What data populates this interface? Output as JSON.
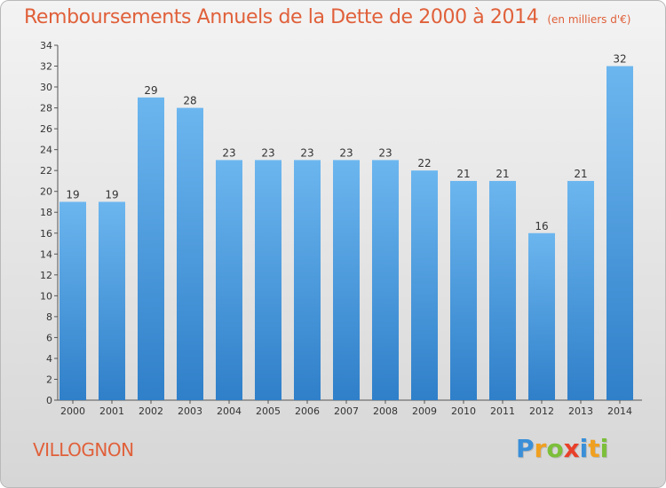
{
  "chart_data": {
    "type": "bar",
    "title": "Remboursements Annuels de la Dette de 2000 à 2014",
    "subtitle": "(en milliers d'€)",
    "categories": [
      "2000",
      "2001",
      "2002",
      "2003",
      "2004",
      "2005",
      "2006",
      "2007",
      "2008",
      "2009",
      "2010",
      "2011",
      "2012",
      "2013",
      "2014"
    ],
    "values": [
      19,
      19,
      29,
      28,
      23,
      23,
      23,
      23,
      23,
      22,
      21,
      21,
      16,
      21,
      32
    ],
    "ylim": [
      0,
      34
    ],
    "yticks": [
      0,
      2,
      4,
      6,
      8,
      10,
      12,
      14,
      16,
      18,
      20,
      22,
      24,
      26,
      28,
      30,
      32,
      34
    ],
    "grid": false,
    "xlabel": "",
    "ylabel": ""
  },
  "commune": "VILLOGNON",
  "brand": {
    "letters": [
      "P",
      "r",
      "o",
      "x",
      "i",
      "t",
      "i"
    ],
    "colors": [
      "#3a8fd8",
      "#f0a020",
      "#7cbf3a",
      "#e8402a",
      "#3a8fd8",
      "#f0a020",
      "#7cbf3a"
    ]
  },
  "colors": {
    "bar": "#3a93dc",
    "bar_light": "#6cb6ef",
    "title": "#e0603a"
  }
}
